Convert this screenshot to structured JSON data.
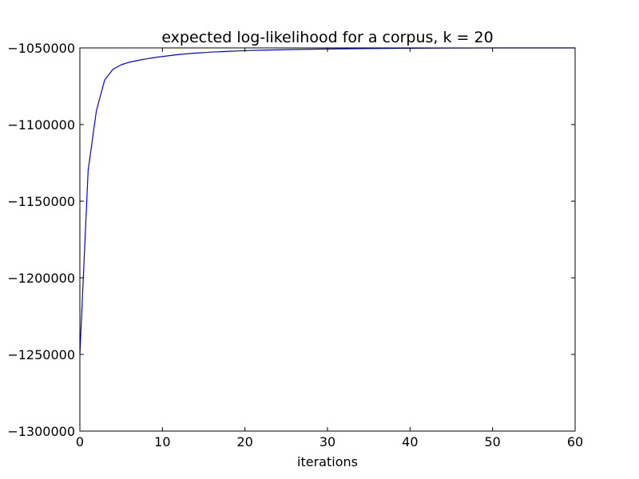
{
  "chart_data": {
    "type": "line",
    "title": "expected log-likelihood for a corpus, k = 20",
    "xlabel": "iterations",
    "ylabel": "",
    "xlim": [
      0,
      60
    ],
    "ylim": [
      -1300000,
      -1050000
    ],
    "xticks": [
      0,
      10,
      20,
      30,
      40,
      50,
      60
    ],
    "xtick_labels": [
      "0",
      "10",
      "20",
      "30",
      "40",
      "50",
      "60"
    ],
    "yticks": [
      -1300000,
      -1250000,
      -1200000,
      -1150000,
      -1100000,
      -1050000
    ],
    "ytick_labels": [
      "−1300000",
      "−1250000",
      "−1200000",
      "−1150000",
      "−1100000",
      "−1050000"
    ],
    "grid": false,
    "legend": "none",
    "series": [
      {
        "color": "#0000ff",
        "x": [
          0,
          1,
          2,
          3,
          4,
          5,
          6,
          7,
          8,
          9,
          10,
          12,
          14,
          16,
          18,
          20,
          22,
          25,
          30,
          35,
          40,
          45,
          50,
          55,
          60
        ],
        "y": [
          -1250000,
          -1130000,
          -1091000,
          -1071000,
          -1064000,
          -1061000,
          -1059300,
          -1058200,
          -1057200,
          -1056300,
          -1055600,
          -1054300,
          -1053400,
          -1052700,
          -1052200,
          -1051800,
          -1051500,
          -1051100,
          -1050700,
          -1050400,
          -1050200,
          -1050100,
          -1050000,
          -1050000,
          -1050000
        ]
      }
    ]
  }
}
